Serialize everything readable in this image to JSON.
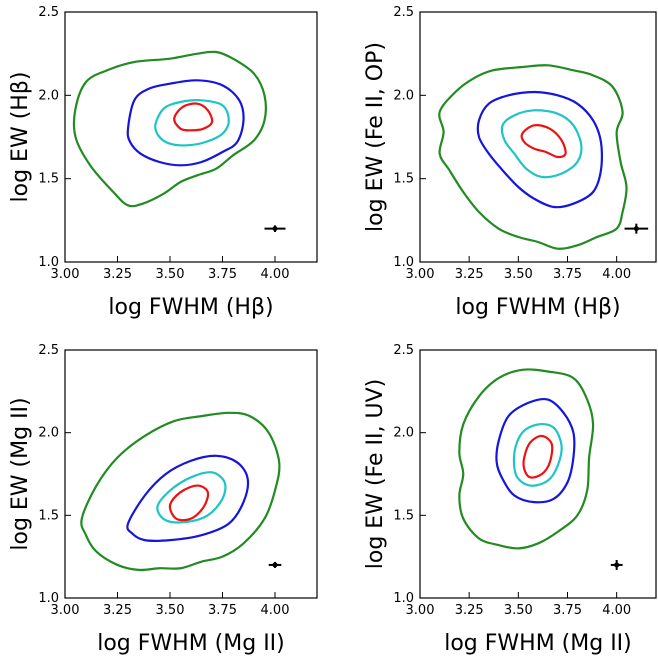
{
  "colors": {
    "level_1": "#228B22",
    "level_2": "#1515dd",
    "level_3": "#1fc4c4",
    "level_4": "#ee1111",
    "axes": "#000000"
  },
  "chart_data": [
    {
      "type": "contour",
      "xlabel": "log FWHM (Hβ)",
      "ylabel": "log EW (Hβ)",
      "xlim": [
        3.0,
        4.2
      ],
      "ylim": [
        1.0,
        2.5
      ],
      "xticks": [
        "3.00",
        "3.25",
        "3.50",
        "3.75",
        "4.00"
      ],
      "yticks": [
        "1.0",
        "1.5",
        "2.0",
        "2.5"
      ],
      "error_bar": {
        "x": 4.0,
        "y": 1.2,
        "xerr": 0.05,
        "yerr": 0.02
      },
      "contours": [
        {
          "level": 1,
          "points": [
            [
              3.05,
              1.92
            ],
            [
              3.1,
              2.08
            ],
            [
              3.2,
              2.15
            ],
            [
              3.33,
              2.2
            ],
            [
              3.5,
              2.22
            ],
            [
              3.63,
              2.25
            ],
            [
              3.72,
              2.26
            ],
            [
              3.8,
              2.22
            ],
            [
              3.9,
              2.13
            ],
            [
              3.95,
              2.0
            ],
            [
              3.95,
              1.85
            ],
            [
              3.9,
              1.73
            ],
            [
              3.8,
              1.64
            ],
            [
              3.72,
              1.56
            ],
            [
              3.63,
              1.52
            ],
            [
              3.55,
              1.48
            ],
            [
              3.47,
              1.41
            ],
            [
              3.37,
              1.35
            ],
            [
              3.3,
              1.34
            ],
            [
              3.23,
              1.42
            ],
            [
              3.12,
              1.58
            ],
            [
              3.05,
              1.75
            ]
          ]
        },
        {
          "level": 2,
          "points": [
            [
              3.3,
              1.8
            ],
            [
              3.33,
              1.97
            ],
            [
              3.4,
              2.04
            ],
            [
              3.5,
              2.07
            ],
            [
              3.63,
              2.09
            ],
            [
              3.75,
              2.06
            ],
            [
              3.83,
              1.97
            ],
            [
              3.85,
              1.85
            ],
            [
              3.82,
              1.72
            ],
            [
              3.75,
              1.66
            ],
            [
              3.65,
              1.6
            ],
            [
              3.55,
              1.58
            ],
            [
              3.45,
              1.6
            ],
            [
              3.36,
              1.65
            ],
            [
              3.31,
              1.72
            ]
          ]
        },
        {
          "level": 3,
          "points": [
            [
              3.43,
              1.82
            ],
            [
              3.47,
              1.92
            ],
            [
              3.55,
              1.96
            ],
            [
              3.65,
              1.97
            ],
            [
              3.75,
              1.94
            ],
            [
              3.78,
              1.85
            ],
            [
              3.75,
              1.77
            ],
            [
              3.67,
              1.72
            ],
            [
              3.58,
              1.7
            ],
            [
              3.5,
              1.71
            ],
            [
              3.45,
              1.75
            ]
          ]
        },
        {
          "level": 4,
          "points": [
            [
              3.52,
              1.86
            ],
            [
              3.56,
              1.93
            ],
            [
              3.63,
              1.95
            ],
            [
              3.68,
              1.91
            ],
            [
              3.7,
              1.84
            ],
            [
              3.66,
              1.8
            ],
            [
              3.6,
              1.79
            ],
            [
              3.55,
              1.8
            ]
          ]
        }
      ]
    },
    {
      "type": "contour",
      "xlabel": "log FWHM (Hβ)",
      "ylabel": "log EW (Fe II,  OP)",
      "xlim": [
        3.0,
        4.2
      ],
      "ylim": [
        1.0,
        2.5
      ],
      "xticks": [
        "3.00",
        "3.25",
        "3.50",
        "3.75",
        "4.00"
      ],
      "yticks": [
        "1.0",
        "1.5",
        "2.0",
        "2.5"
      ],
      "error_bar": {
        "x": 4.1,
        "y": 1.2,
        "xerr": 0.06,
        "yerr": 0.03
      },
      "contours": [
        {
          "level": 1,
          "points": [
            [
              3.1,
              1.9
            ],
            [
              3.18,
              2.02
            ],
            [
              3.27,
              2.1
            ],
            [
              3.37,
              2.15
            ],
            [
              3.52,
              2.17
            ],
            [
              3.65,
              2.18
            ],
            [
              3.78,
              2.15
            ],
            [
              3.88,
              2.12
            ],
            [
              3.98,
              2.05
            ],
            [
              4.03,
              1.9
            ],
            [
              4.0,
              1.78
            ],
            [
              4.02,
              1.6
            ],
            [
              4.05,
              1.45
            ],
            [
              4.03,
              1.3
            ],
            [
              4.0,
              1.2
            ],
            [
              3.9,
              1.15
            ],
            [
              3.8,
              1.1
            ],
            [
              3.7,
              1.08
            ],
            [
              3.6,
              1.12
            ],
            [
              3.5,
              1.15
            ],
            [
              3.4,
              1.2
            ],
            [
              3.3,
              1.3
            ],
            [
              3.22,
              1.42
            ],
            [
              3.15,
              1.55
            ],
            [
              3.1,
              1.65
            ],
            [
              3.12,
              1.78
            ]
          ]
        },
        {
          "level": 2,
          "points": [
            [
              3.3,
              1.85
            ],
            [
              3.35,
              1.95
            ],
            [
              3.45,
              2.0
            ],
            [
              3.58,
              2.02
            ],
            [
              3.7,
              2.0
            ],
            [
              3.8,
              1.95
            ],
            [
              3.88,
              1.85
            ],
            [
              3.92,
              1.72
            ],
            [
              3.92,
              1.55
            ],
            [
              3.88,
              1.42
            ],
            [
              3.78,
              1.35
            ],
            [
              3.68,
              1.33
            ],
            [
              3.58,
              1.38
            ],
            [
              3.5,
              1.45
            ],
            [
              3.42,
              1.55
            ],
            [
              3.35,
              1.65
            ],
            [
              3.3,
              1.75
            ]
          ]
        },
        {
          "level": 3,
          "points": [
            [
              3.42,
              1.82
            ],
            [
              3.48,
              1.88
            ],
            [
              3.58,
              1.91
            ],
            [
              3.7,
              1.89
            ],
            [
              3.78,
              1.82
            ],
            [
              3.82,
              1.7
            ],
            [
              3.8,
              1.6
            ],
            [
              3.72,
              1.53
            ],
            [
              3.62,
              1.51
            ],
            [
              3.54,
              1.56
            ],
            [
              3.48,
              1.65
            ],
            [
              3.43,
              1.73
            ]
          ]
        },
        {
          "level": 4,
          "points": [
            [
              3.52,
              1.77
            ],
            [
              3.58,
              1.82
            ],
            [
              3.66,
              1.8
            ],
            [
              3.72,
              1.73
            ],
            [
              3.74,
              1.65
            ],
            [
              3.7,
              1.63
            ],
            [
              3.64,
              1.66
            ],
            [
              3.58,
              1.68
            ],
            [
              3.53,
              1.72
            ]
          ]
        }
      ]
    },
    {
      "type": "contour",
      "xlabel": "log FWHM (Mg II)",
      "ylabel": "log EW (Mg II)",
      "xlim": [
        3.0,
        4.2
      ],
      "ylim": [
        1.0,
        2.5
      ],
      "xticks": [
        "3.00",
        "3.25",
        "3.50",
        "3.75",
        "4.00"
      ],
      "yticks": [
        "1.0",
        "1.5",
        "2.0",
        "2.5"
      ],
      "error_bar": {
        "x": 4.0,
        "y": 1.2,
        "xerr": 0.03,
        "yerr": 0.01
      },
      "contours": [
        {
          "level": 1,
          "points": [
            [
              3.08,
              1.48
            ],
            [
              3.15,
              1.68
            ],
            [
              3.25,
              1.85
            ],
            [
              3.38,
              1.98
            ],
            [
              3.52,
              2.07
            ],
            [
              3.65,
              2.1
            ],
            [
              3.78,
              2.12
            ],
            [
              3.88,
              2.1
            ],
            [
              3.97,
              2.0
            ],
            [
              4.02,
              1.82
            ],
            [
              4.0,
              1.65
            ],
            [
              3.95,
              1.48
            ],
            [
              3.85,
              1.33
            ],
            [
              3.75,
              1.25
            ],
            [
              3.65,
              1.22
            ],
            [
              3.55,
              1.18
            ],
            [
              3.45,
              1.18
            ],
            [
              3.35,
              1.17
            ],
            [
              3.25,
              1.2
            ],
            [
              3.15,
              1.28
            ],
            [
              3.1,
              1.38
            ]
          ]
        },
        {
          "level": 2,
          "points": [
            [
              3.3,
              1.45
            ],
            [
              3.38,
              1.62
            ],
            [
              3.48,
              1.75
            ],
            [
              3.6,
              1.83
            ],
            [
              3.72,
              1.86
            ],
            [
              3.82,
              1.82
            ],
            [
              3.87,
              1.72
            ],
            [
              3.85,
              1.58
            ],
            [
              3.78,
              1.45
            ],
            [
              3.65,
              1.38
            ],
            [
              3.5,
              1.35
            ],
            [
              3.38,
              1.35
            ],
            [
              3.32,
              1.39
            ]
          ]
        },
        {
          "level": 3,
          "points": [
            [
              3.44,
              1.55
            ],
            [
              3.5,
              1.65
            ],
            [
              3.6,
              1.73
            ],
            [
              3.7,
              1.76
            ],
            [
              3.76,
              1.7
            ],
            [
              3.75,
              1.6
            ],
            [
              3.68,
              1.5
            ],
            [
              3.58,
              1.46
            ],
            [
              3.48,
              1.47
            ]
          ]
        },
        {
          "level": 4,
          "points": [
            [
              3.5,
              1.56
            ],
            [
              3.55,
              1.64
            ],
            [
              3.63,
              1.68
            ],
            [
              3.68,
              1.64
            ],
            [
              3.66,
              1.55
            ],
            [
              3.6,
              1.48
            ],
            [
              3.53,
              1.48
            ]
          ]
        }
      ]
    },
    {
      "type": "contour",
      "xlabel": "log FWHM (Mg II)",
      "ylabel": "log EW (Fe II,  UV)",
      "xlim": [
        3.0,
        4.2
      ],
      "ylim": [
        1.0,
        2.5
      ],
      "xticks": [
        "3.00",
        "3.25",
        "3.50",
        "3.75",
        "4.00"
      ],
      "yticks": [
        "1.0",
        "1.5",
        "2.0",
        "2.5"
      ],
      "error_bar": {
        "x": 4.0,
        "y": 1.2,
        "xerr": 0.03,
        "yerr": 0.03
      },
      "contours": [
        {
          "level": 1,
          "points": [
            [
              3.22,
              2.05
            ],
            [
              3.3,
              2.22
            ],
            [
              3.4,
              2.33
            ],
            [
              3.52,
              2.38
            ],
            [
              3.65,
              2.37
            ],
            [
              3.78,
              2.33
            ],
            [
              3.85,
              2.2
            ],
            [
              3.88,
              2.05
            ],
            [
              3.86,
              1.85
            ],
            [
              3.85,
              1.65
            ],
            [
              3.8,
              1.5
            ],
            [
              3.7,
              1.4
            ],
            [
              3.6,
              1.33
            ],
            [
              3.5,
              1.3
            ],
            [
              3.4,
              1.32
            ],
            [
              3.3,
              1.36
            ],
            [
              3.22,
              1.48
            ],
            [
              3.2,
              1.62
            ],
            [
              3.22,
              1.75
            ],
            [
              3.2,
              1.88
            ]
          ]
        },
        {
          "level": 2,
          "points": [
            [
              3.4,
              1.95
            ],
            [
              3.45,
              2.1
            ],
            [
              3.55,
              2.18
            ],
            [
              3.65,
              2.2
            ],
            [
              3.73,
              2.12
            ],
            [
              3.78,
              2.0
            ],
            [
              3.78,
              1.85
            ],
            [
              3.75,
              1.7
            ],
            [
              3.68,
              1.6
            ],
            [
              3.58,
              1.58
            ],
            [
              3.48,
              1.62
            ],
            [
              3.42,
              1.72
            ],
            [
              3.39,
              1.82
            ]
          ]
        },
        {
          "level": 3,
          "points": [
            [
              3.48,
              1.88
            ],
            [
              3.52,
              2.0
            ],
            [
              3.6,
              2.05
            ],
            [
              3.68,
              2.03
            ],
            [
              3.72,
              1.92
            ],
            [
              3.7,
              1.8
            ],
            [
              3.65,
              1.71
            ],
            [
              3.56,
              1.68
            ],
            [
              3.49,
              1.74
            ]
          ]
        },
        {
          "level": 4,
          "points": [
            [
              3.53,
              1.85
            ],
            [
              3.56,
              1.94
            ],
            [
              3.62,
              1.98
            ],
            [
              3.67,
              1.93
            ],
            [
              3.66,
              1.82
            ],
            [
              3.62,
              1.75
            ],
            [
              3.56,
              1.73
            ],
            [
              3.53,
              1.78
            ]
          ]
        }
      ]
    }
  ]
}
